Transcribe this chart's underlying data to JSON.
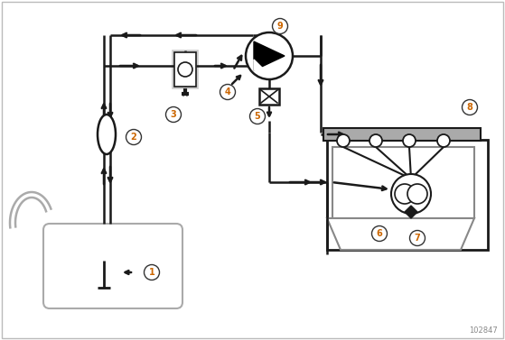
{
  "fig_width": 5.59,
  "fig_height": 3.77,
  "dpi": 100,
  "bg_color": "#ffffff",
  "line_color": "#1a1a1a",
  "label_fg": "#cc6600",
  "label_bg": "#ffffff",
  "label_edge": "#333333",
  "watermark": "102847",
  "tank_color": "#aaaaaa",
  "rail_color": "#aaaaaa",
  "engine_color": "#888888",
  "filter_box_color": "#cccccc",
  "pump_fill": "#000000"
}
